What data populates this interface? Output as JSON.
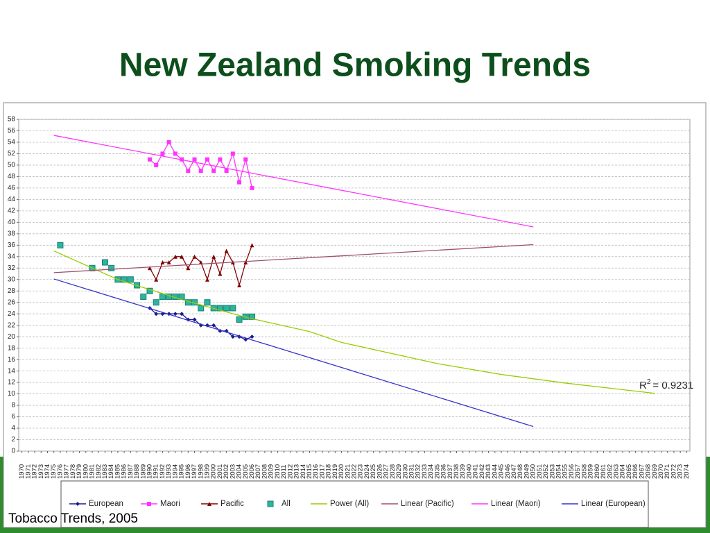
{
  "chart_data": {
    "type": "line",
    "title": "New Zealand Smoking Trends",
    "source": "Tobacco Trends, 2005",
    "r_squared_label": {
      "base": "R",
      "exponent": "2",
      "text": "= 0.9231"
    },
    "xlim": [
      1969.5,
      2074.5
    ],
    "xticks": [
      1970,
      1971,
      1972,
      1973,
      1974,
      1975,
      1976,
      1977,
      1978,
      1979,
      1980,
      1981,
      1982,
      1983,
      1984,
      1985,
      1986,
      1987,
      1988,
      1989,
      1990,
      1991,
      1992,
      1993,
      1994,
      1995,
      1996,
      1997,
      1998,
      1999,
      2000,
      2001,
      2002,
      2003,
      2004,
      2005,
      2006,
      2007,
      2008,
      2009,
      2010,
      2011,
      2012,
      2013,
      2014,
      2015,
      2016,
      2017,
      2018,
      2019,
      2020,
      2021,
      2022,
      2023,
      2024,
      2025,
      2026,
      2027,
      2028,
      2029,
      2030,
      2031,
      2032,
      2033,
      2034,
      2035,
      2036,
      2037,
      2038,
      2039,
      2040,
      2041,
      2042,
      2043,
      2044,
      2045,
      2046,
      2047,
      2048,
      2049,
      2050,
      2051,
      2052,
      2053,
      2054,
      2055,
      2056,
      2057,
      2058,
      2059,
      2060,
      2061,
      2062,
      2063,
      2064,
      2065,
      2066,
      2067,
      2068,
      2069,
      2070,
      2071,
      2072,
      2073,
      2074
    ],
    "ylim": [
      0,
      58
    ],
    "yticks": [
      0,
      2,
      4,
      6,
      8,
      10,
      12,
      14,
      16,
      18,
      20,
      22,
      24,
      26,
      28,
      30,
      32,
      34,
      36,
      38,
      40,
      42,
      44,
      46,
      48,
      50,
      52,
      54,
      56,
      58
    ],
    "grid": true,
    "series": [
      {
        "name": "European",
        "color": "#1c1c8c",
        "marker": "diamond",
        "line": true,
        "x": [
          1990,
          1991,
          1992,
          1993,
          1994,
          1995,
          1996,
          1997,
          1998,
          1999,
          2000,
          2001,
          2002,
          2003,
          2004,
          2005,
          2006
        ],
        "values": [
          25,
          24,
          24,
          24,
          24,
          24,
          23,
          23,
          22,
          22,
          22,
          21,
          21,
          20,
          20,
          19.5,
          20
        ]
      },
      {
        "name": "Maori",
        "color": "#ff33ff",
        "marker": "square",
        "line": true,
        "x": [
          1990,
          1991,
          1992,
          1993,
          1994,
          1995,
          1996,
          1997,
          1998,
          1999,
          2000,
          2001,
          2002,
          2003,
          2004,
          2005,
          2006
        ],
        "values": [
          51,
          50,
          52,
          54,
          52,
          51,
          49,
          51,
          49,
          51,
          49,
          51,
          49,
          52,
          47,
          51,
          46
        ]
      },
      {
        "name": "Pacific",
        "color": "#800000",
        "marker": "triangle",
        "line": true,
        "x": [
          1990,
          1991,
          1992,
          1993,
          1994,
          1995,
          1996,
          1997,
          1998,
          1999,
          2000,
          2001,
          2002,
          2003,
          2004,
          2005,
          2006
        ],
        "values": [
          32,
          30,
          33,
          33,
          34,
          34,
          32,
          34,
          33,
          30,
          34,
          31,
          35,
          33,
          29,
          33,
          36
        ]
      },
      {
        "name": "All",
        "color": "#2ab5a0",
        "marker": "square",
        "line": false,
        "x": [
          1976,
          1981,
          1983,
          1984,
          1985,
          1986,
          1987,
          1988,
          1989,
          1990,
          1991,
          1992,
          1993,
          1994,
          1995,
          1996,
          1997,
          1998,
          1999,
          2000,
          2001,
          2002,
          2003,
          2004,
          2005,
          2006
        ],
        "values": [
          36,
          32,
          33,
          32,
          30,
          30,
          30,
          29,
          27,
          28,
          26,
          27,
          27,
          27,
          27,
          26,
          26,
          25,
          26,
          25,
          25,
          25,
          25,
          23,
          23.5,
          23.5
        ]
      },
      {
        "name": "Power (All)",
        "color": "#99cc00",
        "marker": "none",
        "line": true,
        "x": [
          1975,
          1985,
          1995,
          2005,
          2015,
          2020,
          2035,
          2045,
          2055,
          2069
        ],
        "values": [
          35,
          30,
          26.5,
          23.4,
          20.9,
          19,
          15.3,
          13.4,
          11.9,
          10.1
        ]
      },
      {
        "name": "Linear (Pacific)",
        "color": "#a0506e",
        "marker": "none",
        "line": true,
        "x": [
          1975,
          2050
        ],
        "values": [
          31.2,
          36.1
        ]
      },
      {
        "name": "Linear (Maori)",
        "color": "#ff33ff",
        "marker": "none",
        "line": true,
        "x": [
          1975,
          2050
        ],
        "values": [
          55.2,
          39.2
        ]
      },
      {
        "name": "Linear (European)",
        "color": "#3333cc",
        "marker": "none",
        "line": true,
        "x": [
          1975,
          2050
        ],
        "values": [
          30.1,
          4.3
        ]
      }
    ]
  }
}
